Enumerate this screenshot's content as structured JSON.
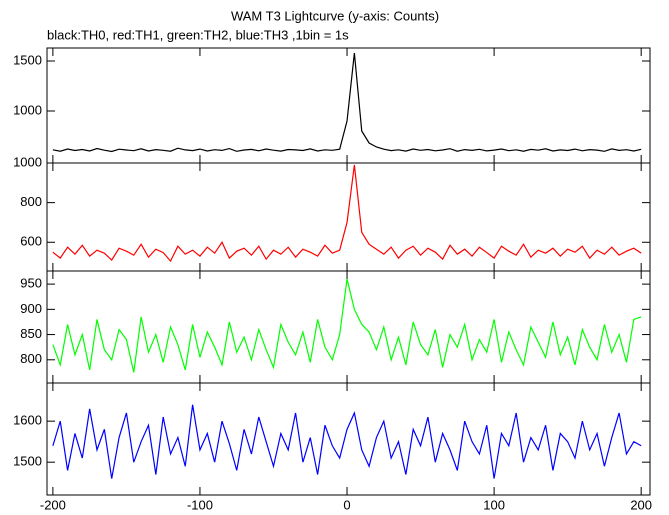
{
  "chart_data": {
    "type": "line",
    "title": "WAM T3 Lightcurve (y-axis: Counts)",
    "subtitle": "black:TH0, red:TH1, green:TH2, blue:TH3 ,1bin = 1s",
    "x": [
      -200,
      -195,
      -190,
      -185,
      -180,
      -175,
      -170,
      -165,
      -160,
      -155,
      -150,
      -145,
      -140,
      -135,
      -130,
      -125,
      -120,
      -115,
      -110,
      -105,
      -100,
      -95,
      -90,
      -85,
      -80,
      -75,
      -70,
      -65,
      -60,
      -55,
      -50,
      -45,
      -40,
      -35,
      -30,
      -25,
      -20,
      -15,
      -10,
      -5,
      0,
      5,
      10,
      15,
      20,
      25,
      30,
      35,
      40,
      45,
      50,
      55,
      60,
      65,
      70,
      75,
      80,
      85,
      90,
      95,
      100,
      105,
      110,
      115,
      120,
      125,
      130,
      135,
      140,
      145,
      150,
      155,
      160,
      165,
      170,
      175,
      180,
      185,
      190,
      195,
      200
    ],
    "xlim": [
      -204,
      206
    ],
    "xticks": [
      -200,
      -100,
      0,
      100,
      200
    ],
    "panels": [
      {
        "color": "#000000",
        "ylim": [
          480,
          1630
        ],
        "yticks": [
          1000,
          1500
        ],
        "values": [
          612,
          598,
          620,
          605,
          615,
          600,
          625,
          608,
          595,
          618,
          610,
          603,
          622,
          600,
          614,
          607,
          598,
          628,
          611,
          604,
          619,
          600,
          613,
          606,
          624,
          597,
          610,
          616,
          602,
          620,
          608,
          599,
          615,
          611,
          605,
          621,
          600,
          612,
          607,
          618,
          900,
          1580,
          800,
          680,
          640,
          618,
          604,
          612,
          599,
          620,
          607,
          615,
          602,
          610,
          623,
          598,
          614,
          606,
          617,
          601,
          609,
          620,
          603,
          612,
          598,
          616,
          608,
          622,
          600,
          611,
          605,
          619,
          602,
          614,
          609,
          597,
          621,
          606,
          613,
          600,
          617
        ]
      },
      {
        "color": "#ff0000",
        "ylim": [
          455,
          1000
        ],
        "yticks": [
          600,
          800,
          1000
        ],
        "values": [
          550,
          520,
          575,
          540,
          585,
          530,
          560,
          545,
          510,
          570,
          555,
          535,
          590,
          525,
          565,
          548,
          505,
          580,
          540,
          560,
          530,
          575,
          545,
          600,
          520,
          555,
          570,
          535,
          580,
          515,
          560,
          540,
          575,
          525,
          565,
          550,
          530,
          585,
          545,
          560,
          700,
          990,
          650,
          590,
          565,
          540,
          575,
          520,
          560,
          580,
          535,
          570,
          550,
          515,
          585,
          540,
          565,
          530,
          575,
          548,
          520,
          580,
          555,
          535,
          590,
          525,
          560,
          545,
          570,
          530,
          565,
          550,
          580,
          520,
          560,
          540,
          575,
          535,
          555,
          570,
          545
        ]
      },
      {
        "color": "#00ff00",
        "ylim": [
          754,
          976
        ],
        "yticks": [
          800,
          850,
          900,
          950
        ],
        "values": [
          830,
          790,
          870,
          810,
          850,
          780,
          880,
          820,
          800,
          860,
          840,
          775,
          885,
          815,
          850,
          795,
          865,
          830,
          780,
          870,
          805,
          855,
          825,
          790,
          875,
          815,
          845,
          800,
          860,
          820,
          785,
          870,
          835,
          810,
          855,
          795,
          880,
          825,
          800,
          850,
          960,
          900,
          870,
          855,
          820,
          865,
          800,
          845,
          790,
          875,
          830,
          810,
          860,
          785,
          850,
          825,
          870,
          800,
          840,
          815,
          880,
          795,
          855,
          820,
          790,
          865,
          835,
          805,
          875,
          810,
          845,
          790,
          860,
          825,
          800,
          870,
          815,
          850,
          795,
          880,
          885
        ]
      },
      {
        "color": "#0000ff",
        "ylim": [
          1420,
          1693
        ],
        "yticks": [
          1500,
          1600
        ],
        "values": [
          1540,
          1600,
          1480,
          1570,
          1510,
          1630,
          1530,
          1580,
          1460,
          1560,
          1620,
          1500,
          1550,
          1590,
          1470,
          1610,
          1520,
          1560,
          1490,
          1640,
          1530,
          1570,
          1500,
          1600,
          1545,
          1480,
          1580,
          1520,
          1610,
          1550,
          1490,
          1570,
          1530,
          1620,
          1500,
          1560,
          1470,
          1590,
          1540,
          1510,
          1580,
          1620,
          1530,
          1490,
          1560,
          1600,
          1510,
          1550,
          1470,
          1580,
          1540,
          1610,
          1500,
          1570,
          1530,
          1480,
          1600,
          1550,
          1520,
          1590,
          1460,
          1570,
          1540,
          1620,
          1500,
          1560,
          1530,
          1590,
          1480,
          1570,
          1550,
          1510,
          1600,
          1530,
          1570,
          1490,
          1560,
          1620,
          1520,
          1550,
          1540
        ]
      }
    ]
  }
}
